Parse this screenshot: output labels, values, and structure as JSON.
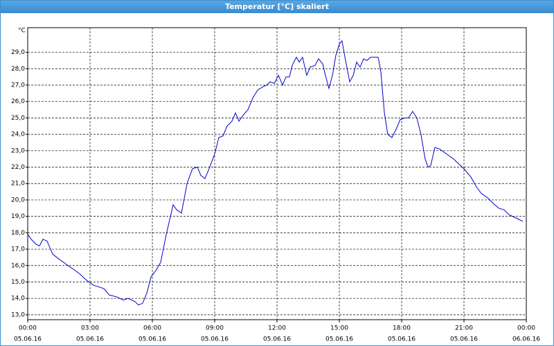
{
  "chart_data": {
    "type": "line",
    "title": "Temperatur [°C] skaliert",
    "y_unit": "°C",
    "xlim": [
      0,
      24
    ],
    "ylim": [
      12.7,
      30.5
    ],
    "grid": true,
    "xticks": [
      {
        "value": 0,
        "label": "00:00"
      },
      {
        "value": 3,
        "label": "03:00"
      },
      {
        "value": 6,
        "label": "06:00"
      },
      {
        "value": 9,
        "label": "09:00"
      },
      {
        "value": 12,
        "label": "12:00"
      },
      {
        "value": 15,
        "label": "15:00"
      },
      {
        "value": 18,
        "label": "18:00"
      },
      {
        "value": 21,
        "label": "21:00"
      },
      {
        "value": 24,
        "label": "00:00"
      }
    ],
    "xtick_dates": [
      "05.06.16",
      "05.06.16",
      "05.06.16",
      "05.06.16",
      "05.06.16",
      "05.06.16",
      "05.06.16",
      "05.06.16",
      "06.06.16"
    ],
    "yticks": [
      {
        "value": 13,
        "label": "13,0"
      },
      {
        "value": 14,
        "label": "14,0"
      },
      {
        "value": 15,
        "label": "15,0"
      },
      {
        "value": 16,
        "label": "16,0"
      },
      {
        "value": 17,
        "label": "17,0"
      },
      {
        "value": 18,
        "label": "18,0"
      },
      {
        "value": 19,
        "label": "19,0"
      },
      {
        "value": 20,
        "label": "20,0"
      },
      {
        "value": 21,
        "label": "21,0"
      },
      {
        "value": 22,
        "label": "22,0"
      },
      {
        "value": 23,
        "label": "23,0"
      },
      {
        "value": 24,
        "label": "24,0"
      },
      {
        "value": 25,
        "label": "25,0"
      },
      {
        "value": 26,
        "label": "26,0"
      },
      {
        "value": 27,
        "label": "27,0"
      },
      {
        "value": 28,
        "label": "28,0"
      },
      {
        "value": 29,
        "label": "29,0"
      }
    ],
    "x": [
      0,
      0.17,
      0.4,
      0.57,
      0.73,
      0.93,
      1.2,
      1.5,
      1.83,
      2.17,
      2.5,
      2.83,
      3.17,
      3.67,
      3.93,
      4.27,
      4.6,
      4.83,
      5.17,
      5.33,
      5.53,
      5.73,
      5.93,
      6.17,
      6.4,
      6.67,
      7,
      7.17,
      7.4,
      7.67,
      7.93,
      8.17,
      8.33,
      8.53,
      8.73,
      9,
      9.2,
      9.4,
      9.6,
      9.83,
      10,
      10.17,
      10.33,
      10.6,
      10.83,
      11.07,
      11.33,
      11.5,
      11.67,
      11.87,
      12.07,
      12.27,
      12.43,
      12.6,
      12.73,
      12.93,
      13.07,
      13.23,
      13.43,
      13.6,
      13.83,
      14,
      14.2,
      14.33,
      14.5,
      14.67,
      14.83,
      15,
      15.13,
      15.27,
      15.5,
      15.67,
      15.83,
      16,
      16.17,
      16.33,
      16.5,
      16.67,
      16.87,
      17,
      17.17,
      17.33,
      17.53,
      17.73,
      17.93,
      18.17,
      18.33,
      18.53,
      18.73,
      18.93,
      19.13,
      19.27,
      19.4,
      19.6,
      19.83,
      20.17,
      20.5,
      20.83,
      21,
      21.33,
      21.6,
      21.83,
      22.17,
      22.4,
      22.67,
      22.93,
      23.17,
      23.5,
      23.83
    ],
    "series": [
      {
        "name": "Temperatur",
        "color": "#0000c8",
        "values": [
          17.9,
          17.6,
          17.3,
          17.2,
          17.6,
          17.5,
          16.7,
          16.4,
          16.1,
          15.8,
          15.5,
          15.1,
          14.8,
          14.6,
          14.2,
          14.1,
          13.9,
          14.0,
          13.8,
          13.6,
          13.7,
          14.3,
          15.3,
          15.7,
          16.2,
          17.9,
          19.7,
          19.4,
          19.2,
          21.0,
          21.9,
          22.0,
          21.5,
          21.3,
          21.9,
          22.8,
          23.8,
          23.9,
          24.5,
          24.8,
          25.3,
          24.8,
          25.1,
          25.5,
          26.2,
          26.7,
          26.9,
          27.0,
          27.2,
          27.1,
          27.6,
          27.0,
          27.5,
          27.5,
          28.2,
          28.7,
          28.4,
          28.7,
          27.6,
          28.1,
          28.2,
          28.6,
          28.3,
          27.6,
          26.8,
          27.6,
          28.8,
          29.5,
          29.7,
          28.7,
          27.2,
          27.6,
          28.4,
          28.1,
          28.6,
          28.5,
          28.7,
          28.7,
          28.7,
          27.8,
          25.3,
          24.0,
          23.8,
          24.3,
          24.9,
          25.0,
          25.0,
          25.4,
          25.0,
          24.0,
          22.5,
          22.0,
          22.1,
          23.2,
          23.1,
          22.8,
          22.5,
          22.1,
          21.9,
          21.4,
          20.8,
          20.4,
          20.1,
          19.8,
          19.5,
          19.4,
          19.1,
          18.9,
          18.7
        ]
      }
    ]
  }
}
